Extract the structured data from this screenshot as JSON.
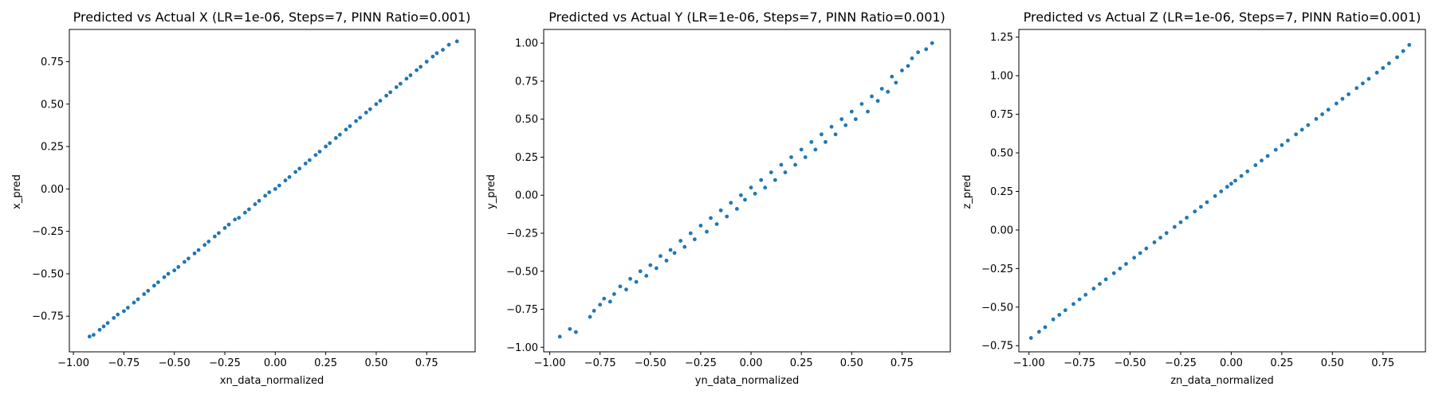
{
  "figure": {
    "background": "#ffffff"
  },
  "chart_data": [
    {
      "type": "scatter",
      "title": "Predicted vs Actual X (LR=1e-06, Steps=7, PINN Ratio=0.001)",
      "xlabel": "xn_data_normalized",
      "ylabel": "x_pred",
      "xlim": [
        -1.02,
        0.99
      ],
      "ylim": [
        -0.96,
        0.94
      ],
      "xticks": [
        -1.0,
        -0.75,
        -0.5,
        -0.25,
        0.0,
        0.25,
        0.5,
        0.75
      ],
      "xtick_labels": [
        "−1.00",
        "−0.75",
        "−0.50",
        "−0.25",
        "0.00",
        "0.25",
        "0.50",
        "0.75"
      ],
      "yticks": [
        -0.75,
        -0.5,
        -0.25,
        0.0,
        0.25,
        0.5,
        0.75
      ],
      "ytick_labels": [
        "−0.75",
        "−0.50",
        "−0.25",
        "0.00",
        "0.25",
        "0.50",
        "0.75"
      ],
      "grid": false,
      "color": "#1f77b4",
      "series": [
        {
          "points": [
            [
              -0.92,
              -0.87
            ],
            [
              -0.9,
              -0.86
            ],
            [
              -0.87,
              -0.83
            ],
            [
              -0.85,
              -0.81
            ],
            [
              -0.83,
              -0.79
            ],
            [
              -0.8,
              -0.76
            ],
            [
              -0.78,
              -0.74
            ],
            [
              -0.75,
              -0.72
            ],
            [
              -0.73,
              -0.7
            ],
            [
              -0.7,
              -0.67
            ],
            [
              -0.68,
              -0.65
            ],
            [
              -0.65,
              -0.62
            ],
            [
              -0.63,
              -0.6
            ],
            [
              -0.6,
              -0.57
            ],
            [
              -0.58,
              -0.55
            ],
            [
              -0.55,
              -0.52
            ],
            [
              -0.53,
              -0.5
            ],
            [
              -0.5,
              -0.48
            ],
            [
              -0.48,
              -0.46
            ],
            [
              -0.45,
              -0.43
            ],
            [
              -0.43,
              -0.41
            ],
            [
              -0.4,
              -0.38
            ],
            [
              -0.38,
              -0.36
            ],
            [
              -0.35,
              -0.33
            ],
            [
              -0.33,
              -0.31
            ],
            [
              -0.3,
              -0.28
            ],
            [
              -0.28,
              -0.26
            ],
            [
              -0.25,
              -0.23
            ],
            [
              -0.23,
              -0.21
            ],
            [
              -0.2,
              -0.18
            ],
            [
              -0.18,
              -0.17
            ],
            [
              -0.15,
              -0.14
            ],
            [
              -0.13,
              -0.12
            ],
            [
              -0.1,
              -0.09
            ],
            [
              -0.08,
              -0.07
            ],
            [
              -0.05,
              -0.04
            ],
            [
              -0.03,
              -0.02
            ],
            [
              0.0,
              0.0
            ],
            [
              0.02,
              0.02
            ],
            [
              0.05,
              0.05
            ],
            [
              0.07,
              0.07
            ],
            [
              0.1,
              0.1
            ],
            [
              0.12,
              0.12
            ],
            [
              0.15,
              0.15
            ],
            [
              0.17,
              0.17
            ],
            [
              0.2,
              0.2
            ],
            [
              0.22,
              0.22
            ],
            [
              0.25,
              0.25
            ],
            [
              0.27,
              0.27
            ],
            [
              0.3,
              0.3
            ],
            [
              0.32,
              0.32
            ],
            [
              0.35,
              0.35
            ],
            [
              0.37,
              0.37
            ],
            [
              0.4,
              0.4
            ],
            [
              0.42,
              0.42
            ],
            [
              0.45,
              0.45
            ],
            [
              0.47,
              0.47
            ],
            [
              0.5,
              0.5
            ],
            [
              0.52,
              0.52
            ],
            [
              0.55,
              0.55
            ],
            [
              0.57,
              0.57
            ],
            [
              0.6,
              0.6
            ],
            [
              0.62,
              0.62
            ],
            [
              0.65,
              0.65
            ],
            [
              0.67,
              0.67
            ],
            [
              0.7,
              0.7
            ],
            [
              0.72,
              0.72
            ],
            [
              0.75,
              0.75
            ],
            [
              0.78,
              0.78
            ],
            [
              0.8,
              0.8
            ],
            [
              0.83,
              0.82
            ],
            [
              0.86,
              0.85
            ],
            [
              0.9,
              0.87
            ]
          ]
        }
      ]
    },
    {
      "type": "scatter",
      "title": "Predicted vs Actual Y (LR=1e-06, Steps=7, PINN Ratio=0.001)",
      "xlabel": "yn_data_normalized",
      "ylabel": "y_pred",
      "xlim": [
        -1.03,
        0.99
      ],
      "ylim": [
        -1.03,
        1.09
      ],
      "xticks": [
        -1.0,
        -0.75,
        -0.5,
        -0.25,
        0.0,
        0.25,
        0.5,
        0.75
      ],
      "xtick_labels": [
        "−1.00",
        "−0.75",
        "−0.50",
        "−0.25",
        "0.00",
        "0.25",
        "0.50",
        "0.75"
      ],
      "yticks": [
        -1.0,
        -0.75,
        -0.5,
        -0.25,
        0.0,
        0.25,
        0.5,
        0.75,
        1.0
      ],
      "ytick_labels": [
        "−1.00",
        "−0.75",
        "−0.50",
        "−0.25",
        "0.00",
        "0.25",
        "0.50",
        "0.75",
        "1.00"
      ],
      "grid": false,
      "color": "#1f77b4",
      "series": [
        {
          "points": [
            [
              -0.95,
              -0.93
            ],
            [
              -0.9,
              -0.88
            ],
            [
              -0.87,
              -0.9
            ],
            [
              -0.8,
              -0.8
            ],
            [
              -0.78,
              -0.76
            ],
            [
              -0.75,
              -0.72
            ],
            [
              -0.73,
              -0.68
            ],
            [
              -0.7,
              -0.7
            ],
            [
              -0.68,
              -0.65
            ],
            [
              -0.65,
              -0.6
            ],
            [
              -0.62,
              -0.62
            ],
            [
              -0.6,
              -0.55
            ],
            [
              -0.57,
              -0.57
            ],
            [
              -0.55,
              -0.5
            ],
            [
              -0.52,
              -0.53
            ],
            [
              -0.5,
              -0.46
            ],
            [
              -0.47,
              -0.48
            ],
            [
              -0.45,
              -0.4
            ],
            [
              -0.42,
              -0.43
            ],
            [
              -0.4,
              -0.36
            ],
            [
              -0.38,
              -0.38
            ],
            [
              -0.35,
              -0.3
            ],
            [
              -0.33,
              -0.34
            ],
            [
              -0.3,
              -0.25
            ],
            [
              -0.28,
              -0.29
            ],
            [
              -0.25,
              -0.2
            ],
            [
              -0.22,
              -0.24
            ],
            [
              -0.2,
              -0.15
            ],
            [
              -0.17,
              -0.19
            ],
            [
              -0.15,
              -0.1
            ],
            [
              -0.12,
              -0.14
            ],
            [
              -0.1,
              -0.05
            ],
            [
              -0.07,
              -0.09
            ],
            [
              -0.05,
              0.0
            ],
            [
              -0.03,
              -0.03
            ],
            [
              0.0,
              0.05
            ],
            [
              0.02,
              0.01
            ],
            [
              0.05,
              0.1
            ],
            [
              0.07,
              0.05
            ],
            [
              0.1,
              0.15
            ],
            [
              0.12,
              0.1
            ],
            [
              0.15,
              0.2
            ],
            [
              0.17,
              0.15
            ],
            [
              0.2,
              0.25
            ],
            [
              0.22,
              0.2
            ],
            [
              0.25,
              0.3
            ],
            [
              0.27,
              0.25
            ],
            [
              0.3,
              0.35
            ],
            [
              0.32,
              0.3
            ],
            [
              0.35,
              0.4
            ],
            [
              0.37,
              0.35
            ],
            [
              0.4,
              0.45
            ],
            [
              0.42,
              0.4
            ],
            [
              0.45,
              0.5
            ],
            [
              0.47,
              0.46
            ],
            [
              0.5,
              0.55
            ],
            [
              0.52,
              0.5
            ],
            [
              0.55,
              0.6
            ],
            [
              0.58,
              0.55
            ],
            [
              0.6,
              0.65
            ],
            [
              0.63,
              0.62
            ],
            [
              0.65,
              0.7
            ],
            [
              0.68,
              0.68
            ],
            [
              0.7,
              0.78
            ],
            [
              0.72,
              0.74
            ],
            [
              0.75,
              0.82
            ],
            [
              0.78,
              0.85
            ],
            [
              0.8,
              0.9
            ],
            [
              0.83,
              0.94
            ],
            [
              0.87,
              0.96
            ],
            [
              0.9,
              1.0
            ]
          ]
        }
      ]
    },
    {
      "type": "scatter",
      "title": "Predicted vs Actual Z (LR=1e-06, Steps=7, PINN Ratio=0.001)",
      "xlabel": "zn_data_normalized",
      "ylabel": "z_pred",
      "xlim": [
        -1.05,
        0.96
      ],
      "ylim": [
        -0.79,
        1.3
      ],
      "xticks": [
        -1.0,
        -0.75,
        -0.5,
        -0.25,
        0.0,
        0.25,
        0.5,
        0.75
      ],
      "xtick_labels": [
        "−1.00",
        "−0.75",
        "−0.50",
        "−0.25",
        "0.00",
        "0.25",
        "0.50",
        "0.75"
      ],
      "yticks": [
        -0.75,
        -0.5,
        -0.25,
        0.0,
        0.25,
        0.5,
        0.75,
        1.0,
        1.25
      ],
      "ytick_labels": [
        "−0.75",
        "−0.50",
        "−0.25",
        "0.00",
        "0.25",
        "0.50",
        "0.75",
        "1.00",
        "1.25"
      ],
      "grid": false,
      "color": "#1f77b4",
      "series": [
        {
          "points": [
            [
              -0.99,
              -0.7
            ],
            [
              -0.95,
              -0.66
            ],
            [
              -0.92,
              -0.63
            ],
            [
              -0.88,
              -0.58
            ],
            [
              -0.85,
              -0.55
            ],
            [
              -0.82,
              -0.52
            ],
            [
              -0.78,
              -0.48
            ],
            [
              -0.75,
              -0.45
            ],
            [
              -0.72,
              -0.42
            ],
            [
              -0.68,
              -0.38
            ],
            [
              -0.65,
              -0.35
            ],
            [
              -0.62,
              -0.32
            ],
            [
              -0.58,
              -0.28
            ],
            [
              -0.55,
              -0.25
            ],
            [
              -0.52,
              -0.22
            ],
            [
              -0.48,
              -0.18
            ],
            [
              -0.45,
              -0.15
            ],
            [
              -0.42,
              -0.12
            ],
            [
              -0.38,
              -0.08
            ],
            [
              -0.35,
              -0.05
            ],
            [
              -0.32,
              -0.02
            ],
            [
              -0.28,
              0.02
            ],
            [
              -0.25,
              0.05
            ],
            [
              -0.22,
              0.08
            ],
            [
              -0.18,
              0.12
            ],
            [
              -0.15,
              0.15
            ],
            [
              -0.12,
              0.18
            ],
            [
              -0.08,
              0.22
            ],
            [
              -0.05,
              0.25
            ],
            [
              -0.02,
              0.28
            ],
            [
              0.0,
              0.3
            ],
            [
              0.02,
              0.32
            ],
            [
              0.05,
              0.35
            ],
            [
              0.08,
              0.38
            ],
            [
              0.12,
              0.42
            ],
            [
              0.15,
              0.45
            ],
            [
              0.18,
              0.48
            ],
            [
              0.22,
              0.52
            ],
            [
              0.25,
              0.55
            ],
            [
              0.28,
              0.58
            ],
            [
              0.32,
              0.62
            ],
            [
              0.35,
              0.65
            ],
            [
              0.38,
              0.68
            ],
            [
              0.42,
              0.72
            ],
            [
              0.45,
              0.75
            ],
            [
              0.48,
              0.78
            ],
            [
              0.52,
              0.82
            ],
            [
              0.55,
              0.85
            ],
            [
              0.58,
              0.88
            ],
            [
              0.62,
              0.92
            ],
            [
              0.65,
              0.95
            ],
            [
              0.68,
              0.98
            ],
            [
              0.72,
              1.02
            ],
            [
              0.75,
              1.05
            ],
            [
              0.78,
              1.08
            ],
            [
              0.82,
              1.12
            ],
            [
              0.85,
              1.16
            ],
            [
              0.88,
              1.2
            ]
          ]
        }
      ]
    }
  ]
}
